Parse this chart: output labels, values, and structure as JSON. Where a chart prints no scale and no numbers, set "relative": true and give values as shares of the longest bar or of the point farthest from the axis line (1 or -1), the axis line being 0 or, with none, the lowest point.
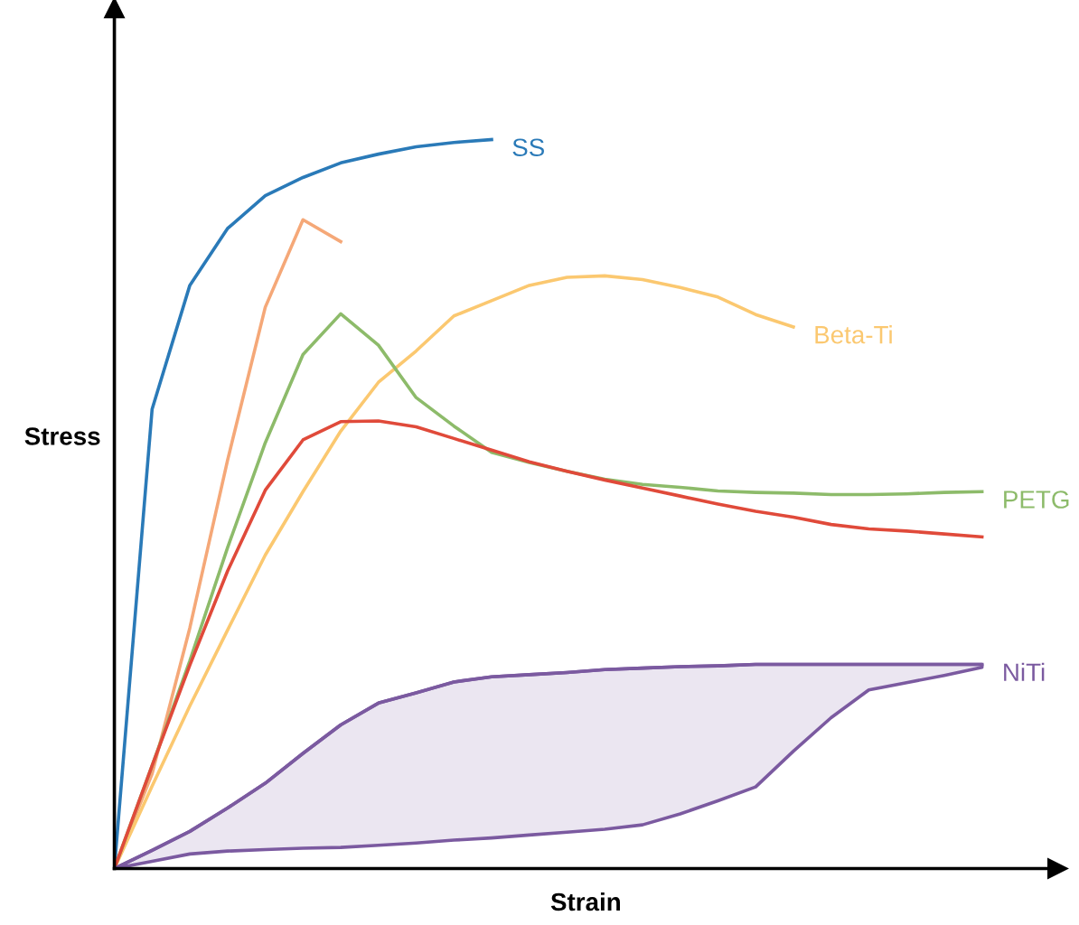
{
  "chart_data": {
    "type": "line",
    "relative": true,
    "xlabel": "Strain",
    "ylabel": "Stress",
    "legend": false,
    "marker": "none",
    "line_style": "solid",
    "categories": [
      null,
      null,
      null,
      null,
      null,
      null,
      null,
      null,
      null,
      null,
      null,
      null,
      null,
      null,
      null,
      null,
      null,
      null,
      null,
      null,
      null,
      null,
      null,
      null
    ],
    "series": [
      {
        "name": "SS",
        "color": "#2a7ab8",
        "values": [
          0,
          0.63,
          0.8,
          0.878,
          0.923,
          0.948,
          0.968,
          0.98,
          0.99,
          0.996,
          1.0,
          null,
          null,
          null,
          null,
          null,
          null,
          null,
          null,
          null,
          null,
          null,
          null,
          null
        ]
      },
      {
        "color": "#f5a878",
        "values": [
          0,
          0.13,
          0.33,
          0.56,
          0.77,
          0.89,
          0.86,
          null,
          null,
          null,
          null,
          null,
          null,
          null,
          null,
          null,
          null,
          null,
          null,
          null,
          null,
          null,
          null,
          null
        ]
      },
      {
        "name": "Beta-Ti",
        "color": "#fbc870",
        "values": [
          0,
          0.113,
          0.223,
          0.327,
          0.43,
          0.517,
          0.6,
          0.667,
          0.71,
          0.758,
          0.779,
          0.8,
          0.811,
          0.813,
          0.808,
          0.797,
          0.784,
          0.76,
          0.743,
          null,
          null,
          null,
          null,
          null
        ]
      },
      {
        "name": "PETG",
        "color": "#8dbb6a",
        "values": [
          0,
          0.141,
          0.285,
          0.44,
          0.584,
          0.705,
          0.761,
          0.718,
          0.646,
          0.607,
          0.571,
          0.557,
          0.545,
          0.534,
          0.527,
          0.523,
          0.518,
          0.516,
          0.515,
          0.513,
          0.513,
          0.514,
          0.516,
          0.517
        ]
      },
      {
        "color": "#e04a3a",
        "values": [
          0,
          0.141,
          0.279,
          0.408,
          0.519,
          0.588,
          0.613,
          0.614,
          0.606,
          0.59,
          0.574,
          0.558,
          0.545,
          0.533,
          0.522,
          0.511,
          0.5,
          0.49,
          0.482,
          0.472,
          0.466,
          0.463,
          0.459,
          0.455
        ]
      },
      {
        "name": "NiTi",
        "color": "#7b5aa0",
        "values": [
          0,
          0.025,
          0.051,
          0.083,
          0.117,
          0.158,
          0.197,
          0.227,
          0.241,
          0.256,
          0.263,
          0.266,
          0.269,
          0.273,
          0.275,
          0.277,
          0.278,
          0.28,
          0.28,
          0.28,
          0.28,
          0.28,
          0.28,
          0.28
        ],
        "upper": [
          0,
          0.025,
          0.051,
          0.083,
          0.117,
          0.158,
          0.197,
          0.227,
          0.241,
          0.256,
          0.263,
          0.266,
          0.269,
          0.273,
          0.275,
          0.277,
          0.278,
          0.28,
          0.28,
          0.28,
          0.28,
          0.28,
          0.28,
          0.28
        ],
        "lower": [
          0,
          0.01,
          0.02,
          0.024,
          0.026,
          0.028,
          0.029,
          0.032,
          0.035,
          0.039,
          0.042,
          0.046,
          0.05,
          0.054,
          0.06,
          0.075,
          0.093,
          0.112,
          0.161,
          0.207,
          0.245,
          0.255,
          0.265,
          0.276
        ]
      }
    ]
  }
}
